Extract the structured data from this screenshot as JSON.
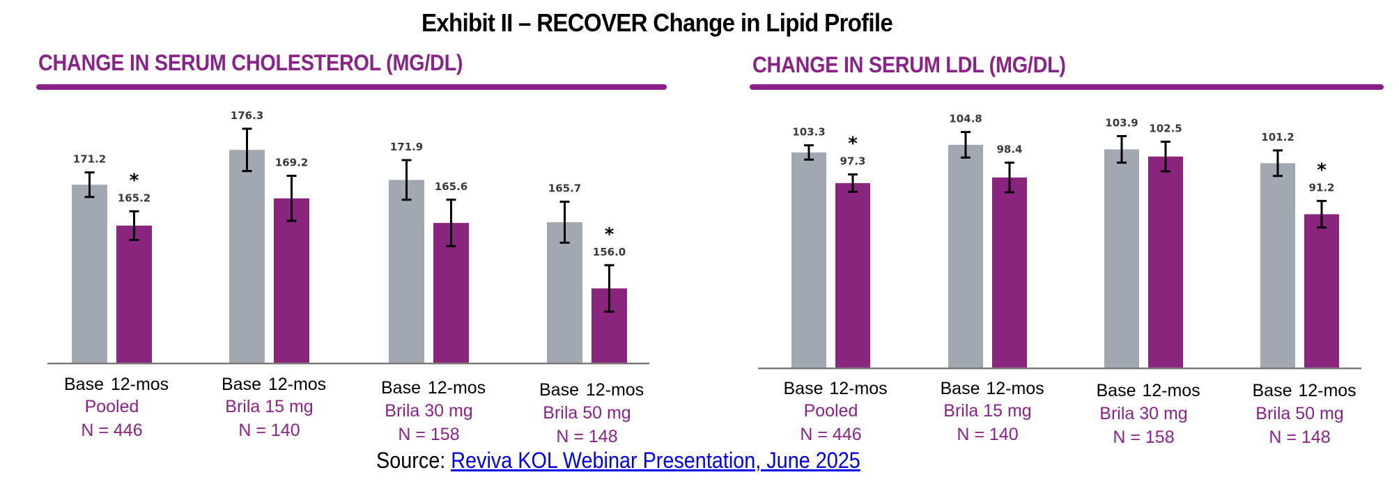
{
  "title": "Exhibit II – RECOVER Change in Lipid Profile",
  "source": {
    "prefix": "Source: ",
    "link_text": "Reviva KOL Webinar Presentation, June 2025"
  },
  "colors": {
    "base": "#a1a8b1",
    "twelve_mos": "#8a257d",
    "heading": "#8a2388",
    "group_label": "#8a2388",
    "error_bar": "#000000",
    "value_label": "#3a3a3a"
  },
  "chart_data": [
    {
      "type": "bar",
      "title": "CHANGE IN SERUM CHOLESTEROL (MG/DL)",
      "xlabel": "",
      "ylabel": "",
      "ylim": [
        145,
        180
      ],
      "grid": false,
      "legend": "none",
      "bar_labels": [
        "Base",
        "12-mos"
      ],
      "categories": [
        "Pooled",
        "Brila 15 mg",
        "Brila 30 mg",
        "Brila 50 mg"
      ],
      "n_labels": [
        "N = 446",
        "N = 140",
        "N = 158",
        "N = 148"
      ],
      "series": [
        {
          "name": "Base",
          "values": [
            171.2,
            176.3,
            171.9,
            165.7
          ],
          "error": [
            1.8,
            3.1,
            2.9,
            3.0
          ],
          "significant": [
            false,
            false,
            false,
            false
          ]
        },
        {
          "name": "12-mos",
          "values": [
            165.2,
            169.2,
            165.6,
            156.0
          ],
          "error": [
            2.1,
            3.3,
            3.4,
            3.4
          ],
          "significant": [
            true,
            false,
            false,
            true
          ]
        }
      ],
      "value_labels": {
        "Base": [
          "171.2",
          "176.3",
          "171.9",
          "165.7"
        ],
        "12-mos": [
          "165.2",
          "169.2",
          "165.6",
          "156.0"
        ]
      },
      "significance_marker": "*"
    },
    {
      "type": "bar",
      "title": "CHANGE IN SERUM LDL (MG/DL)",
      "xlabel": "",
      "ylabel": "",
      "ylim": [
        61,
        110
      ],
      "grid": false,
      "legend": "none",
      "bar_labels": [
        "Base",
        "12-mos"
      ],
      "categories": [
        "Pooled",
        "Brila 15 mg",
        "Brila 30 mg",
        "Brila 50 mg"
      ],
      "n_labels": [
        "N = 446",
        "N = 140",
        "N = 158",
        "N = 148"
      ],
      "series": [
        {
          "name": "Base",
          "values": [
            103.3,
            104.8,
            103.9,
            101.2
          ],
          "error": [
            1.4,
            2.5,
            2.6,
            2.5
          ],
          "significant": [
            false,
            false,
            false,
            false
          ]
        },
        {
          "name": "12-mos",
          "values": [
            97.3,
            98.4,
            102.5,
            91.2
          ],
          "error": [
            1.7,
            2.9,
            2.9,
            2.6
          ],
          "significant": [
            true,
            false,
            false,
            true
          ]
        }
      ],
      "value_labels": {
        "Base": [
          "103.3",
          "104.8",
          "103.9",
          "101.2"
        ],
        "12-mos": [
          "97.3",
          "98.4",
          "102.5",
          "91.2"
        ]
      },
      "significance_marker": "*"
    }
  ]
}
